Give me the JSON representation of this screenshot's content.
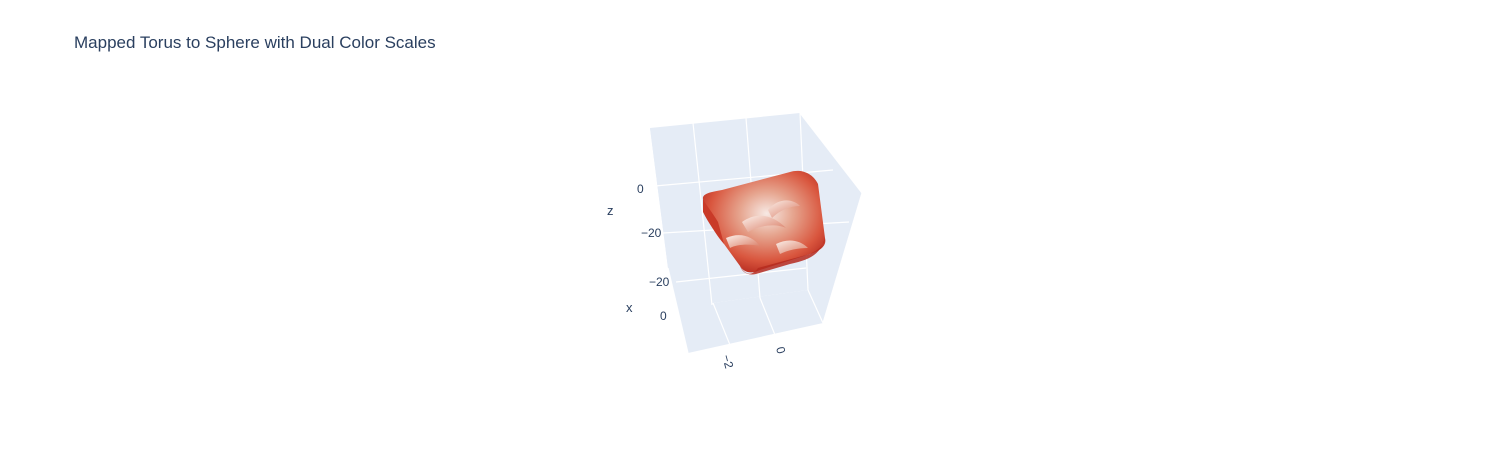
{
  "chart_data": {
    "type": "surface3d",
    "title": "Mapped Torus to Sphere with Dual Color Scales",
    "axes": {
      "x": {
        "title": "x",
        "tick_labels": [
          "−20",
          "0"
        ]
      },
      "y": {
        "title": "",
        "tick_labels": [
          "−2",
          "0"
        ]
      },
      "z": {
        "title": "z",
        "tick_labels": [
          "0",
          "−20"
        ]
      }
    },
    "colorscale": [
      "#f7e9e4",
      "#e6a58f",
      "#d9563e",
      "#b52a1f"
    ],
    "background_color": "#e5ecf6",
    "grid_color": "#ffffff"
  }
}
